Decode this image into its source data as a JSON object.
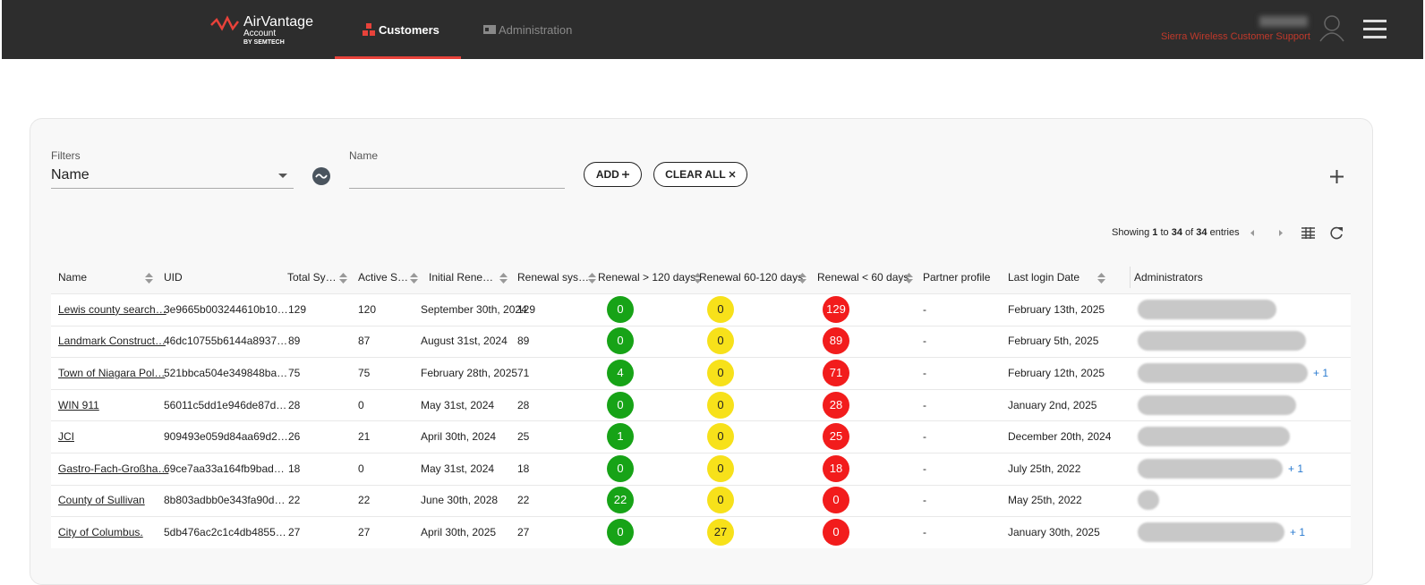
{
  "header": {
    "logo": {
      "title": "AirVantage",
      "subtitle": "Account",
      "byline": "BY SEMTECH"
    },
    "nav": [
      "Customers",
      "Administration"
    ],
    "user": "Sierra Wireless Customer Support"
  },
  "filters": {
    "label": "Filters",
    "select": "Name",
    "name_label": "Name",
    "add": "ADD",
    "clear": "CLEAR ALL"
  },
  "pagination": {
    "prefix": "Showing",
    "from": 1,
    "to_word": "to",
    "to": 34,
    "of_word": "of",
    "total": 34,
    "suffix": "entries"
  },
  "table": {
    "columns": [
      "Name",
      "UID",
      "Total Sy…",
      "Active S…",
      "Initial Rene…",
      "Renewal sys…",
      "Renewal > 120 days",
      "Renewal 60-120 days",
      "Renewal < 60 days",
      "Partner profile",
      "Last login Date",
      "Administrators"
    ],
    "rows": [
      {
        "cells": [
          "Lewis county search…",
          "3e9665b003244610b10…",
          129,
          120,
          "September 30th, 2024",
          129,
          0,
          0,
          129,
          "-",
          "February 13th, 2025"
        ]
      },
      {
        "cells": [
          "Landmark Construct…",
          "46dc10755b6144a8937…",
          89,
          87,
          "August 31st, 2024",
          89,
          0,
          0,
          89,
          "-",
          "February 5th, 2025"
        ]
      },
      {
        "cells": [
          "Town of Niagara Pol…",
          "521bbca504e349848ba…",
          75,
          75,
          "February 28th, 2025",
          71,
          4,
          0,
          71,
          "-",
          "February 12th, 2025"
        ],
        "more": "+ 1"
      },
      {
        "cells": [
          "WIN 911",
          "56011c5dd1e946de87d…",
          28,
          0,
          "May 31st, 2024",
          28,
          0,
          0,
          28,
          "-",
          "January 2nd, 2025"
        ]
      },
      {
        "cells": [
          "JCI",
          "909493e059d84aa69d2…",
          26,
          21,
          "April 30th, 2024",
          25,
          1,
          0,
          25,
          "-",
          "December 20th, 2024"
        ]
      },
      {
        "cells": [
          "Gastro-Fach-Großha…",
          "69ce7aa33a164fb9bad…",
          18,
          0,
          "May 31st, 2024",
          18,
          0,
          0,
          18,
          "-",
          "July 25th, 2022"
        ],
        "more": "+ 1"
      },
      {
        "cells": [
          "County of Sullivan",
          "8b803adbb0e343fa90d…",
          22,
          22,
          "June 30th, 2028",
          22,
          22,
          0,
          0,
          "-",
          "May 25th, 2022"
        ]
      },
      {
        "cells": [
          "City of Columbus.",
          "5db476ac2c1c4db4855…",
          27,
          27,
          "April 30th, 2025",
          27,
          0,
          27,
          0,
          "-",
          "January 30th, 2025"
        ],
        "more": "+ 1"
      }
    ]
  }
}
